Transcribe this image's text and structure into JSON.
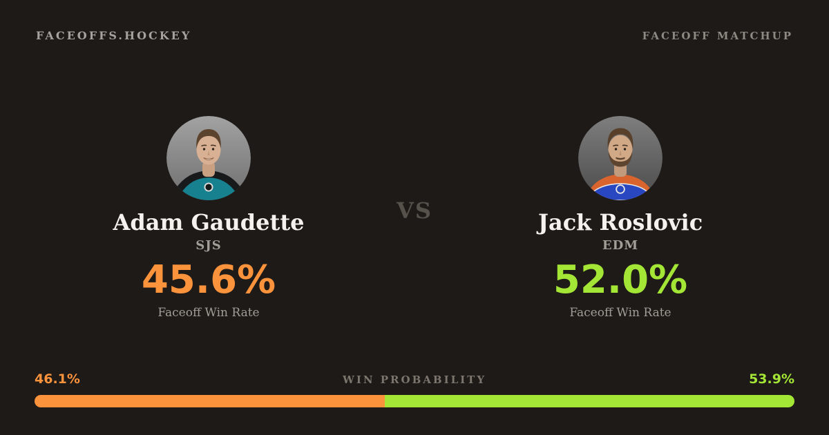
{
  "theme": {
    "background": "#1e1a17",
    "text_primary": "#f4f1ee",
    "text_muted": "#a39d97",
    "text_faint": "#7d766f",
    "orange": "#fb923c",
    "lime": "#a3e635"
  },
  "header": {
    "brand": "FACEOFFS.HOCKEY",
    "page_label": "FACEOFF MATCHUP"
  },
  "matchup": {
    "vs_label": "VS",
    "players": [
      {
        "side": "left",
        "name": "Adam Gaudette",
        "team": "SJS",
        "faceoff_win_rate": "45.6%",
        "stat_caption": "Faceoff Win Rate",
        "accent": "#fb923c"
      },
      {
        "side": "right",
        "name": "Jack Roslovic",
        "team": "EDM",
        "faceoff_win_rate": "52.0%",
        "stat_caption": "Faceoff Win Rate",
        "accent": "#a3e635"
      }
    ]
  },
  "win_probability": {
    "title": "WIN PROBABILITY",
    "left": {
      "player": "Adam Gaudette",
      "label": "46.1%",
      "value": 46.1,
      "color": "#fb923c"
    },
    "right": {
      "player": "Jack Roslovic",
      "label": "53.9%",
      "value": 53.9,
      "color": "#a3e635"
    }
  }
}
